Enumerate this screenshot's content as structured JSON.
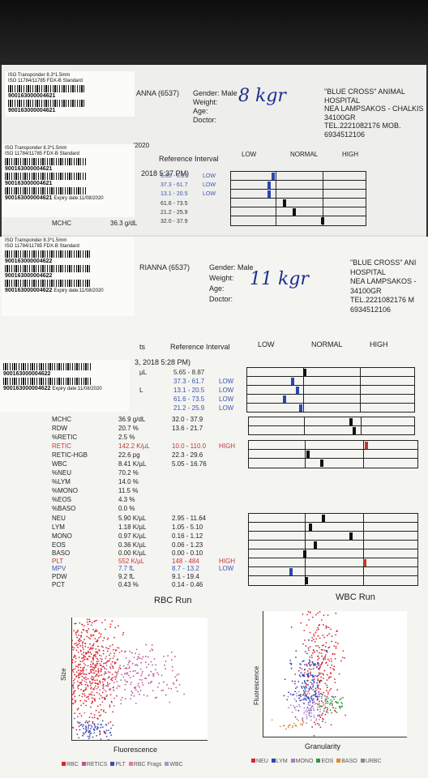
{
  "sticker": {
    "iso_line1": "ISO Transponder 8.3*1.5mm",
    "iso_line2": "ISO 11784/11785 FDX-B Standard",
    "code_a": "900163000004621",
    "code_b": "900163000004622",
    "expiry": "Expiry date:11/08/2020"
  },
  "report1": {
    "patient": "ANNA (6537)",
    "gender": "Gender: Male",
    "weight_label": "Weight:",
    "weight_hand": "8 kgr",
    "age_label": "Age:",
    "doctor_label": "Doctor:",
    "hospital": [
      "\"BLUE CROSS\" ANIMAL",
      "HOSPITAL",
      "NEA LAMPSAKOS - CHALKIS",
      "34100GR",
      "TEL.2221082176 MOB.",
      "6934512106"
    ],
    "year_frag": "/2020",
    "ref_header": "Reference Interval",
    "low": "LOW",
    "normal": "NORMAL",
    "high": "HIGH",
    "run_time": "2018 5:37 PM)",
    "rows": [
      {
        "ref": "5.65 - 8.87",
        "flag": "LOW"
      },
      {
        "ref": "37.3 - 61.7",
        "flag": "LOW"
      },
      {
        "ref": "13.1 - 20.5",
        "flag": "LOW"
      },
      {
        "ref": "61.6 - 73.5",
        "flag": ""
      },
      {
        "ref": "21.2 - 25.9",
        "flag": ""
      },
      {
        "ref": "32.0 - 37.9",
        "flag": ""
      }
    ],
    "mchc_label": "MCHC",
    "mchc_value": "36.3 g/dL"
  },
  "report2": {
    "patient": "RIANNA (6537)",
    "gender": "Gender: Male",
    "weight_label": "Weight:",
    "weight_hand": "11 kgr",
    "age_label": "Age:",
    "doctor_label": "Doctor:",
    "hospital": [
      "\"BLUE CROSS\" ANI",
      "HOSPITAL",
      "NEA LAMPSAKOS -",
      "34100GR",
      "TEL.2221082176 M",
      "6934512106"
    ],
    "ts": "ts",
    "ref_header": "Reference Interval",
    "low": "LOW",
    "normal": "NORMAL",
    "high": "HIGH",
    "run_time": "3, 2018 5:28 PM)",
    "top_rows": [
      {
        "unit": "µL",
        "ref": "5.65 - 8.87",
        "flag": ""
      },
      {
        "unit": "",
        "ref": "37.3 - 61.7",
        "flag": "LOW"
      },
      {
        "unit": "L",
        "ref": "13.1 - 20.5",
        "flag": "LOW"
      },
      {
        "unit": "",
        "ref": "61.6 - 73.5",
        "flag": "LOW"
      },
      {
        "unit": "",
        "ref": "21.2 - 25.9",
        "flag": "LOW"
      }
    ],
    "rows": [
      {
        "name": "MCHC",
        "value": "36.9 g/dL",
        "ref": "32.0 - 37.9",
        "flag": ""
      },
      {
        "name": "RDW",
        "value": "20.7 %",
        "ref": "13.6 - 21.7",
        "flag": ""
      },
      {
        "name": "%RETIC",
        "value": "2.5 %",
        "ref": "",
        "flag": ""
      },
      {
        "name": "RETIC",
        "value": "142.2 K/µL",
        "ref": "10.0 - 110.0",
        "flag": "HIGH"
      },
      {
        "name": "RETIC-HGB",
        "value": "22.6 pg",
        "ref": "22.3 - 29.6",
        "flag": ""
      },
      {
        "name": "WBC",
        "value": "8.41 K/µL",
        "ref": "5.05 - 16.76",
        "flag": ""
      },
      {
        "name": "%NEU",
        "value": "70.2 %",
        "ref": "",
        "flag": ""
      },
      {
        "name": "%LYM",
        "value": "14.0 %",
        "ref": "",
        "flag": ""
      },
      {
        "name": "%MONO",
        "value": "11.5 %",
        "ref": "",
        "flag": ""
      },
      {
        "name": "%EOS",
        "value": "4.3 %",
        "ref": "",
        "flag": ""
      },
      {
        "name": "%BASO",
        "value": "0.0 %",
        "ref": "",
        "flag": ""
      },
      {
        "name": "NEU",
        "value": "5.90 K/µL",
        "ref": "2.95 - 11.64",
        "flag": ""
      },
      {
        "name": "LYM",
        "value": "1.18 K/µL",
        "ref": "1.05 - 5.10",
        "flag": ""
      },
      {
        "name": "MONO",
        "value": "0.97 K/µL",
        "ref": "0.16 - 1.12",
        "flag": ""
      },
      {
        "name": "EOS",
        "value": "0.36 K/µL",
        "ref": "0.06 - 1.23",
        "flag": ""
      },
      {
        "name": "BASO",
        "value": "0.00 K/µL",
        "ref": "0.00 - 0.10",
        "flag": ""
      },
      {
        "name": "PLT",
        "value": "552 K/µL",
        "ref": "148 - 484",
        "flag": "HIGH"
      },
      {
        "name": "MPV",
        "value": "7.7 fL",
        "ref": "8.7 - 13.2",
        "flag": "LOW"
      },
      {
        "name": "PDW",
        "value": "9.2 fL",
        "ref": "9.1 - 19.4",
        "flag": ""
      },
      {
        "name": "PCT",
        "value": "0.43 %",
        "ref": "0.14 - 0.46",
        "flag": ""
      }
    ],
    "rbc_title": "RBC Run",
    "wbc_title": "WBC Run",
    "rbc_ylabel": "Size",
    "rbc_xlabel": "Fluorescence",
    "wbc_ylabel": "Fluorescence",
    "wbc_xlabel": "Granularity",
    "rbc_legend": [
      {
        "label": "RBC",
        "color": "#d8262a"
      },
      {
        "label": "RETICS",
        "color": "#c0568f"
      },
      {
        "label": "PLT",
        "color": "#3a4db0"
      },
      {
        "label": "RBC Frags",
        "color": "#e37aa0"
      },
      {
        "label": "WBC",
        "color": "#9a9acc"
      }
    ],
    "wbc_legend": [
      {
        "label": "NEU",
        "color": "#d8262a"
      },
      {
        "label": "LYM",
        "color": "#2b45b3"
      },
      {
        "label": "MONO",
        "color": "#a87fc7"
      },
      {
        "label": "EOS",
        "color": "#2e9a3b"
      },
      {
        "label": "BASO",
        "color": "#e08a2a"
      },
      {
        "label": "URBC",
        "color": "#8a8a8a"
      }
    ]
  },
  "colors": {
    "flag_high": "#c23a3a",
    "flag_low": "#3d56b0",
    "pen": "#1d2f8f",
    "marker": "#111111",
    "marker_low": "#2b45b3",
    "marker_high": "#c0392b"
  }
}
